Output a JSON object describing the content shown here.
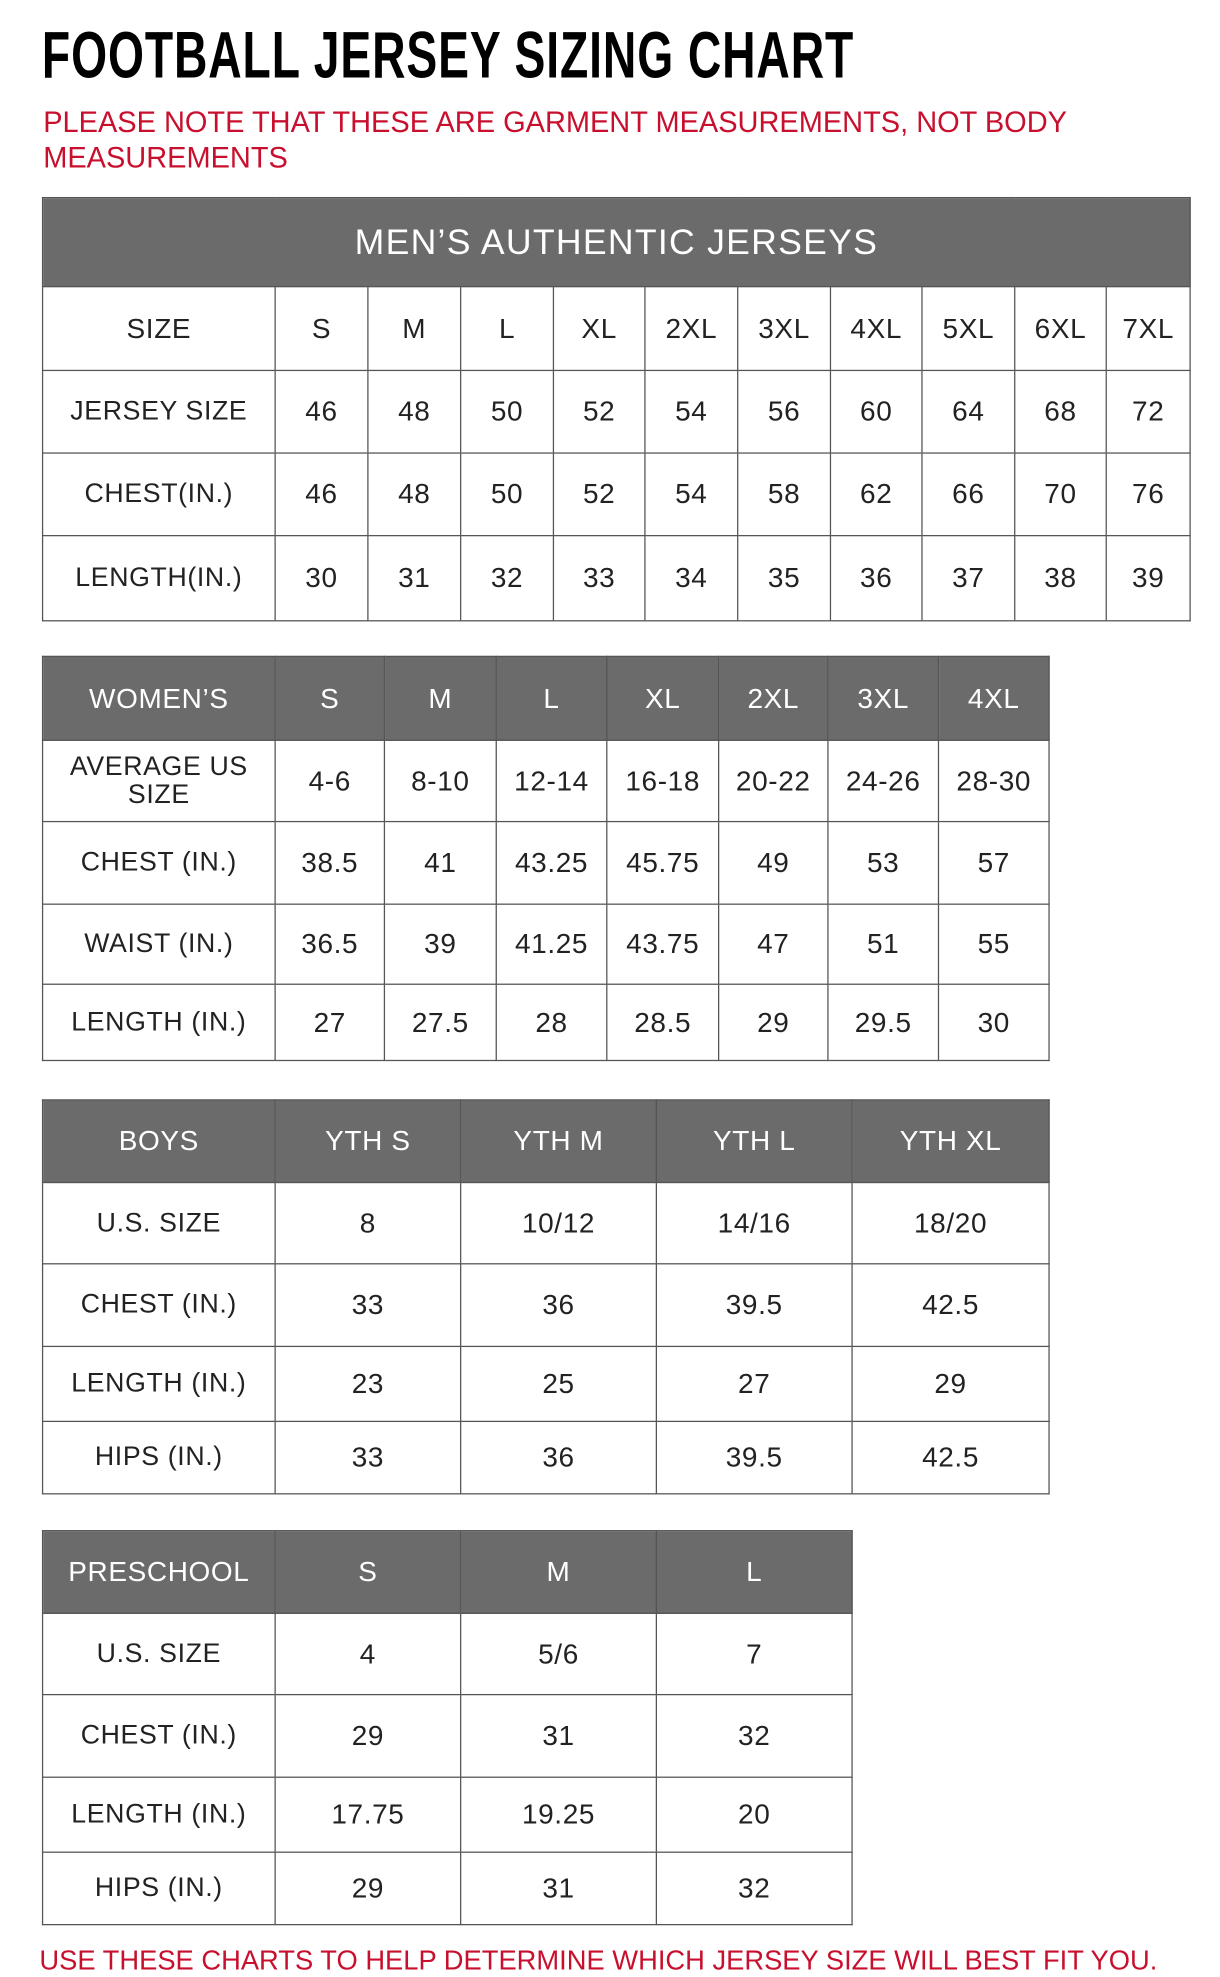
{
  "title": "FOOTBALL JERSEY SIZING CHART",
  "note": "PLEASE NOTE THAT THESE ARE GARMENT MEASUREMENTS, NOT BODY MEASUREMENTS",
  "footer": "USE THESE CHARTS TO HELP DETERMINE WHICH JERSEY SIZE WILL BEST FIT YOU.",
  "colors": {
    "header_bg": "#6b6b6b",
    "accent_red": "#c8102e"
  },
  "tables": [
    {
      "caption": "MEN’S AUTHENTIC JERSEYS",
      "header_style": "plain",
      "header": [
        "SIZE",
        "S",
        "M",
        "L",
        "XL",
        "2XL",
        "3XL",
        "4XL",
        "5XL",
        "6XL",
        "7XL"
      ],
      "rows": [
        [
          "JERSEY SIZE",
          "46",
          "48",
          "50",
          "52",
          "54",
          "56",
          "60",
          "64",
          "68",
          "72"
        ],
        [
          "CHEST(IN.)",
          "46",
          "48",
          "50",
          "52",
          "54",
          "58",
          "62",
          "66",
          "70",
          "76"
        ],
        [
          "LENGTH(IN.)",
          "30",
          "31",
          "32",
          "33",
          "34",
          "35",
          "36",
          "37",
          "38",
          "39"
        ]
      ]
    },
    {
      "header_style": "gray",
      "header": [
        "WOMEN’S",
        "S",
        "M",
        "L",
        "XL",
        "2XL",
        "3XL",
        "4XL"
      ],
      "rows": [
        [
          "AVERAGE US SIZE",
          "4-6",
          "8-10",
          "12-14",
          "16-18",
          "20-22",
          "24-26",
          "28-30"
        ],
        [
          "CHEST (IN.)",
          "38.5",
          "41",
          "43.25",
          "45.75",
          "49",
          "53",
          "57"
        ],
        [
          "WAIST (IN.)",
          "36.5",
          "39",
          "41.25",
          "43.75",
          "47",
          "51",
          "55"
        ],
        [
          "LENGTH (IN.)",
          "27",
          "27.5",
          "28",
          "28.5",
          "29",
          "29.5",
          "30"
        ]
      ]
    },
    {
      "header_style": "gray",
      "header": [
        "BOYS",
        "YTH S",
        "YTH M",
        "YTH L",
        "YTH XL"
      ],
      "rows": [
        [
          "U.S. SIZE",
          "8",
          "10/12",
          "14/16",
          "18/20"
        ],
        [
          "CHEST (IN.)",
          "33",
          "36",
          "39.5",
          "42.5"
        ],
        [
          "LENGTH (IN.)",
          "23",
          "25",
          "27",
          "29"
        ],
        [
          "HIPS (IN.)",
          "33",
          "36",
          "39.5",
          "42.5"
        ]
      ]
    },
    {
      "header_style": "gray",
      "header": [
        "PRESCHOOL",
        "S",
        "M",
        "L"
      ],
      "rows": [
        [
          "U.S. SIZE",
          "4",
          "5/6",
          "7"
        ],
        [
          "CHEST (IN.)",
          "29",
          "31",
          "32"
        ],
        [
          "LENGTH (IN.)",
          "17.75",
          "19.25",
          "20"
        ],
        [
          "HIPS (IN.)",
          "29",
          "31",
          "32"
        ]
      ]
    }
  ]
}
